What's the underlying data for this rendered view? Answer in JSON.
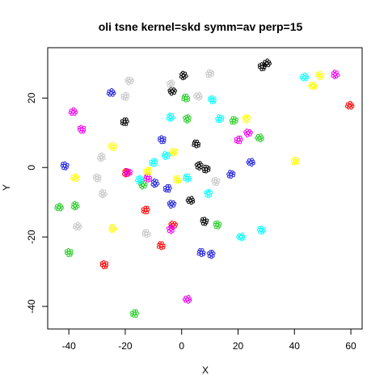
{
  "chart_data": {
    "type": "scatter",
    "title": "oli tsne kernel=skd symm=av perp=15",
    "xlabel": "X",
    "ylabel": "Y",
    "xlim": [
      -47.5,
      64.0
    ],
    "ylim": [
      -46.5,
      34.5
    ],
    "xticks": [
      -40,
      -20,
      0,
      20,
      40,
      60
    ],
    "xtick_labels": [
      "-40",
      "-20",
      "0",
      "20",
      "40",
      "60"
    ],
    "yticks": [
      -40,
      -20,
      0,
      20
    ],
    "ytick_labels": [
      "-40",
      "-20",
      "0",
      "20"
    ],
    "grid": false,
    "legend": "none",
    "marker": "open-circle",
    "series": [
      {
        "name": "black",
        "color": "#000000",
        "points": [
          [
            30.2,
            30.0
          ],
          [
            28.5,
            29.0
          ],
          [
            0.6,
            26.5
          ],
          [
            -20.2,
            13.2
          ],
          [
            -3.3,
            22.0
          ],
          [
            5.2,
            6.8
          ],
          [
            6.2,
            0.5
          ],
          [
            8.7,
            -0.5
          ],
          [
            3.1,
            -9.5
          ],
          [
            8.0,
            -15.5
          ]
        ]
      },
      {
        "name": "red",
        "color": "#ff0000",
        "points": [
          [
            59.6,
            17.8
          ],
          [
            -27.5,
            -28.0
          ],
          [
            -19.7,
            -1.5
          ],
          [
            -12.8,
            -12.2
          ],
          [
            -3.0,
            -16.5
          ],
          [
            -7.2,
            -22.5
          ]
        ]
      },
      {
        "name": "green",
        "color": "#22cc22",
        "points": [
          [
            -43.5,
            -11.5
          ],
          [
            -40.0,
            -24.5
          ],
          [
            -37.8,
            -11.0
          ],
          [
            -16.7,
            -42.0
          ],
          [
            -13.7,
            -5.0
          ],
          [
            1.5,
            20.0
          ],
          [
            2.0,
            14.0
          ],
          [
            18.5,
            13.5
          ],
          [
            27.6,
            8.5
          ],
          [
            12.6,
            -16.5
          ]
        ]
      },
      {
        "name": "blue",
        "color": "#2222dd",
        "points": [
          [
            -25.0,
            21.5
          ],
          [
            -7.0,
            8.0
          ],
          [
            -9.5,
            -4.5
          ],
          [
            -5.0,
            -6.0
          ],
          [
            -3.5,
            -10.5
          ],
          [
            7.0,
            -24.5
          ],
          [
            10.5,
            -25.0
          ],
          [
            17.5,
            -2.0
          ],
          [
            24.5,
            1.5
          ],
          [
            -41.5,
            0.5
          ]
        ]
      },
      {
        "name": "cyan",
        "color": "#00ffff",
        "points": [
          [
            43.5,
            26.0
          ],
          [
            10.8,
            19.5
          ],
          [
            -4.0,
            14.5
          ],
          [
            -10.0,
            1.5
          ],
          [
            -5.5,
            3.5
          ],
          [
            2.0,
            -3.0
          ],
          [
            9.5,
            -7.5
          ],
          [
            13.5,
            14.0
          ],
          [
            21.0,
            -20.0
          ],
          [
            28.2,
            -18.0
          ],
          [
            -15.0,
            -3.5
          ]
        ]
      },
      {
        "name": "magenta",
        "color": "#ee00ee",
        "points": [
          [
            -38.5,
            16.0
          ],
          [
            -35.5,
            11.0
          ],
          [
            54.4,
            26.8
          ],
          [
            20.2,
            8.0
          ],
          [
            23.6,
            10.0
          ],
          [
            -12.0,
            -3.0
          ],
          [
            -3.8,
            -17.8
          ],
          [
            -19.0,
            -1.5
          ],
          [
            2.0,
            -38.0
          ]
        ]
      },
      {
        "name": "yellow",
        "color": "#ffff00",
        "points": [
          [
            -37.8,
            -3.0
          ],
          [
            -24.5,
            6.0
          ],
          [
            -24.5,
            -17.5
          ],
          [
            -12.0,
            -1.0
          ],
          [
            -2.8,
            4.5
          ],
          [
            -1.5,
            -3.5
          ],
          [
            23.0,
            14.0
          ],
          [
            40.3,
            1.8
          ],
          [
            46.5,
            23.5
          ],
          [
            49.0,
            26.5
          ]
        ]
      },
      {
        "name": "gray",
        "color": "#c8c8c8",
        "points": [
          [
            -37.0,
            -17.0
          ],
          [
            -30.0,
            -3.0
          ],
          [
            -28.0,
            -7.5
          ],
          [
            -20.0,
            20.5
          ],
          [
            -18.5,
            25.0
          ],
          [
            -12.5,
            -19.0
          ],
          [
            -3.8,
            24.0
          ],
          [
            10.0,
            27.0
          ],
          [
            5.8,
            20.5
          ],
          [
            12.0,
            -4.0
          ],
          [
            -28.5,
            3.0
          ]
        ]
      }
    ]
  }
}
